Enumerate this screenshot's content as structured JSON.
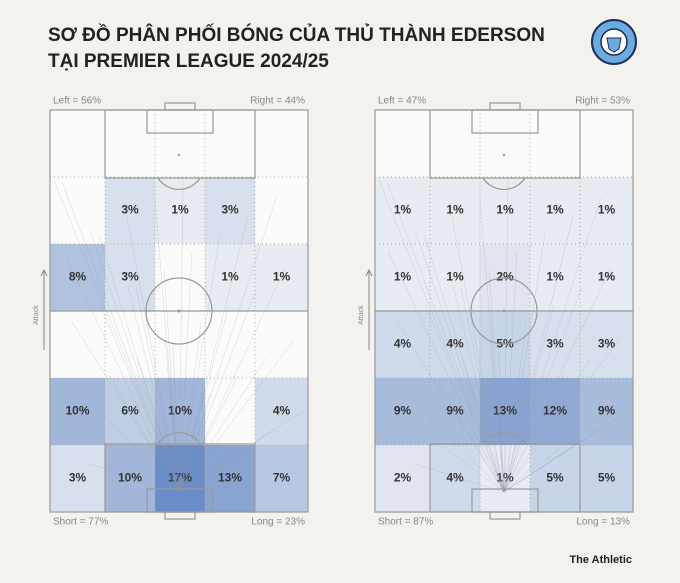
{
  "title_lines": [
    "SƠ ĐỒ PHÂN PHỐI BÓNG CỦA THỦ THÀNH EDERSON",
    "TẠI PREMIER LEAGUE 2024/25"
  ],
  "source": "The Athletic",
  "chart_data": [
    {
      "type": "heatmap",
      "left_label": "Left = 56%",
      "right_label": "Right = 44%",
      "short_label": "Short = 77%",
      "long_label": "Long = 23%",
      "axis_label": "Attack",
      "values": [
        [
          null,
          3,
          1,
          3,
          null
        ],
        [
          8,
          3,
          null,
          1,
          1
        ],
        [
          null,
          null,
          null,
          null,
          null
        ],
        [
          10,
          6,
          10,
          null,
          4
        ],
        [
          3,
          10,
          17,
          13,
          7
        ]
      ],
      "value_labels": [
        [
          null,
          "3%",
          "1%",
          "3%",
          null
        ],
        [
          "8%",
          "3%",
          null,
          "1%",
          "1%"
        ],
        [
          null,
          null,
          null,
          null,
          null
        ],
        [
          "10%",
          "6%",
          "10%",
          null,
          "4%"
        ],
        [
          "3%",
          "10%",
          "17%",
          "13%",
          "7%"
        ]
      ]
    },
    {
      "type": "heatmap",
      "left_label": "Left = 47%",
      "right_label": "Right = 53%",
      "short_label": "Short = 87%",
      "long_label": "Long = 13%",
      "axis_label": "Attack",
      "values": [
        [
          1,
          1,
          1,
          1,
          1
        ],
        [
          1,
          1,
          2,
          1,
          1
        ],
        [
          4,
          4,
          5,
          3,
          3
        ],
        [
          9,
          9,
          13,
          12,
          9
        ],
        [
          2,
          4,
          1,
          5,
          5
        ]
      ],
      "value_labels": [
        [
          "1%",
          "1%",
          "1%",
          "1%",
          "1%"
        ],
        [
          "1%",
          "1%",
          "2%",
          "1%",
          "1%"
        ],
        [
          "4%",
          "4%",
          "5%",
          "3%",
          "3%"
        ],
        [
          "9%",
          "9%",
          "13%",
          "12%",
          "9%"
        ],
        [
          "2%",
          "4%",
          "1%",
          "5%",
          "5%"
        ]
      ]
    }
  ]
}
